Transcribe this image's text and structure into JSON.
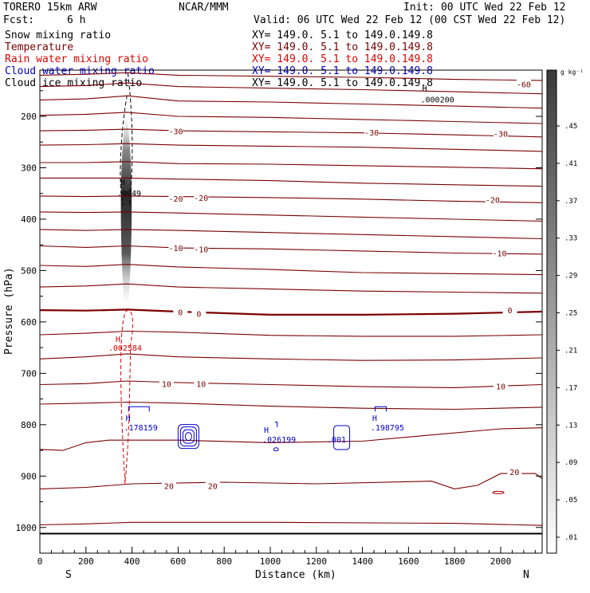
{
  "header": {
    "model": "TORERO  15km ARW",
    "org": "NCAR/MMM",
    "init": "Init: 00 UTC Wed 22 Feb 12",
    "fcst_label": "Fcst:",
    "fcst_value": "6 h",
    "valid": "Valid: 06 UTC Wed 22 Feb 12 (00 CST Wed 22 Feb 12)"
  },
  "legend": [
    {
      "name": "Snow mixing ratio",
      "color": "#000000",
      "xy": "XY= 149.0.  5.1 to 149.0.149.8"
    },
    {
      "name": "Temperature",
      "color": "#7a0000",
      "xy": "XY= 149.0.  5.1 to 149.0.149.8"
    },
    {
      "name": "Rain water mixing ratio",
      "color": "#e00000",
      "xy": "XY= 149.0.  5.1 to 149.0.149.8"
    },
    {
      "name": "Cloud water mixing ratio",
      "color": "#0000cc",
      "xy": "XY= 149.0.  5.1 to 149.0.149.8"
    },
    {
      "name": "Cloud ice mixing ratio",
      "color": "#000000",
      "xy": "XY= 149.0.  5.1 to 149.0.149.8"
    }
  ],
  "chart_data": {
    "type": "contour-cross-section",
    "xlabel": "Distance (km)",
    "ylabel": "Pressure (hPa)",
    "xlim": [
      0,
      2180
    ],
    "ylim": [
      1050,
      110
    ],
    "x_ticks": [
      0,
      200,
      400,
      600,
      800,
      1000,
      1200,
      1400,
      1600,
      1800,
      2000
    ],
    "y_ticks": [
      200,
      300,
      400,
      500,
      600,
      700,
      800,
      900,
      1000
    ],
    "x_end_labels": {
      "left": "S",
      "right": "N"
    },
    "colorbar": {
      "unit": "g kg⁻¹",
      "labels": [
        ".01",
        ".05",
        ".09",
        ".13",
        ".17",
        ".21",
        ".25",
        ".29",
        ".33",
        ".37",
        ".41",
        ".45"
      ],
      "color_low": "#ffffff",
      "color_high": "#3a3a3a"
    },
    "temperature_contours": [
      {
        "label": "-60",
        "points": [
          [
            0,
            120
          ],
          [
            200,
            118
          ],
          [
            380,
            115
          ],
          [
            600,
            120
          ],
          [
            1000,
            122
          ],
          [
            1400,
            124
          ],
          [
            1800,
            128
          ],
          [
            2180,
            130
          ]
        ]
      },
      {
        "label": "",
        "points": [
          [
            0,
            142
          ],
          [
            200,
            140
          ],
          [
            380,
            135
          ],
          [
            600,
            142
          ],
          [
            1000,
            145
          ],
          [
            1400,
            148
          ],
          [
            1800,
            152
          ],
          [
            2180,
            156
          ]
        ]
      },
      {
        "label": "",
        "points": [
          [
            0,
            168
          ],
          [
            200,
            166
          ],
          [
            380,
            160
          ],
          [
            600,
            170
          ],
          [
            1000,
            172
          ],
          [
            1400,
            176
          ],
          [
            1800,
            180
          ],
          [
            2180,
            184
          ]
        ]
      },
      {
        "label": "",
        "points": [
          [
            0,
            198
          ],
          [
            200,
            196
          ],
          [
            380,
            192
          ],
          [
            600,
            200
          ],
          [
            1000,
            202
          ],
          [
            1400,
            206
          ],
          [
            1800,
            210
          ],
          [
            2180,
            214
          ]
        ]
      },
      {
        "label": "-30",
        "points": [
          [
            0,
            228
          ],
          [
            200,
            227
          ],
          [
            380,
            225
          ],
          [
            600,
            228
          ],
          [
            1000,
            230
          ],
          [
            1400,
            232
          ],
          [
            1800,
            236
          ],
          [
            2180,
            240
          ]
        ]
      },
      {
        "label": "",
        "points": [
          [
            0,
            256
          ],
          [
            200,
            255
          ],
          [
            380,
            253
          ],
          [
            600,
            256
          ],
          [
            1000,
            258
          ],
          [
            1400,
            260
          ],
          [
            1800,
            264
          ],
          [
            2180,
            268
          ]
        ]
      },
      {
        "label": "-30",
        "points": [
          [
            0,
            290
          ],
          [
            200,
            290
          ],
          [
            380,
            288
          ],
          [
            600,
            292
          ],
          [
            1000,
            293
          ],
          [
            1400,
            296
          ],
          [
            1800,
            299
          ],
          [
            2180,
            302
          ]
        ]
      },
      {
        "label": "",
        "points": [
          [
            0,
            320
          ],
          [
            200,
            320
          ],
          [
            380,
            320
          ],
          [
            600,
            322
          ],
          [
            1000,
            325
          ],
          [
            1400,
            330
          ],
          [
            1800,
            333
          ],
          [
            2180,
            336
          ]
        ]
      },
      {
        "label": "-20",
        "points": [
          [
            0,
            355
          ],
          [
            200,
            356
          ],
          [
            380,
            355
          ],
          [
            600,
            356
          ],
          [
            1000,
            358
          ],
          [
            1400,
            361
          ],
          [
            1800,
            365
          ],
          [
            2180,
            368
          ]
        ]
      },
      {
        "label": "",
        "points": [
          [
            0,
            386
          ],
          [
            200,
            387
          ],
          [
            380,
            386
          ],
          [
            600,
            388
          ],
          [
            1000,
            392
          ],
          [
            1400,
            396
          ],
          [
            1800,
            400
          ],
          [
            2180,
            404
          ]
        ]
      },
      {
        "label": "",
        "points": [
          [
            0,
            420
          ],
          [
            200,
            422
          ],
          [
            380,
            420
          ],
          [
            600,
            422
          ],
          [
            1000,
            426
          ],
          [
            1400,
            430
          ],
          [
            1800,
            434
          ],
          [
            2180,
            438
          ]
        ]
      },
      {
        "label": "-10",
        "points": [
          [
            0,
            452
          ],
          [
            200,
            455
          ],
          [
            380,
            452
          ],
          [
            600,
            456
          ],
          [
            1000,
            458
          ],
          [
            1400,
            462
          ],
          [
            1800,
            466
          ],
          [
            2180,
            468
          ]
        ]
      },
      {
        "label": "",
        "points": [
          [
            0,
            490
          ],
          [
            200,
            492
          ],
          [
            380,
            488
          ],
          [
            600,
            493
          ],
          [
            1000,
            498
          ],
          [
            1400,
            504
          ],
          [
            1800,
            506
          ],
          [
            2180,
            508
          ]
        ]
      },
      {
        "label": "",
        "points": [
          [
            0,
            532
          ],
          [
            200,
            530
          ],
          [
            380,
            526
          ],
          [
            600,
            532
          ],
          [
            1000,
            536
          ],
          [
            1400,
            540
          ],
          [
            1800,
            542
          ],
          [
            2180,
            544
          ]
        ]
      },
      {
        "label": "0",
        "points": [
          [
            0,
            577
          ],
          [
            200,
            578
          ],
          [
            380,
            576
          ],
          [
            600,
            580
          ],
          [
            1000,
            586
          ],
          [
            1400,
            586
          ],
          [
            1800,
            584
          ],
          [
            2180,
            580
          ]
        ]
      },
      {
        "label": "",
        "points": [
          [
            0,
            625
          ],
          [
            200,
            622
          ],
          [
            380,
            618
          ],
          [
            600,
            620
          ],
          [
            1000,
            626
          ],
          [
            1400,
            628
          ],
          [
            1800,
            628
          ],
          [
            2180,
            625
          ]
        ]
      },
      {
        "label": "",
        "points": [
          [
            0,
            672
          ],
          [
            200,
            668
          ],
          [
            380,
            662
          ],
          [
            600,
            668
          ],
          [
            1000,
            672
          ],
          [
            1400,
            675
          ],
          [
            1800,
            674
          ],
          [
            2180,
            670
          ]
        ]
      },
      {
        "label": "10",
        "points": [
          [
            0,
            722
          ],
          [
            200,
            720
          ],
          [
            380,
            715
          ],
          [
            600,
            718
          ],
          [
            1000,
            722
          ],
          [
            1400,
            726
          ],
          [
            1800,
            728
          ],
          [
            2180,
            722
          ]
        ]
      },
      {
        "label": "",
        "points": [
          [
            0,
            760
          ],
          [
            200,
            758
          ],
          [
            380,
            756
          ],
          [
            600,
            758
          ],
          [
            1000,
            764
          ],
          [
            1400,
            768
          ],
          [
            1800,
            770
          ],
          [
            2180,
            766
          ]
        ]
      },
      {
        "label": "",
        "points": [
          [
            0,
            848
          ],
          [
            100,
            850
          ],
          [
            200,
            835
          ],
          [
            300,
            830
          ],
          [
            600,
            830
          ],
          [
            1000,
            835
          ],
          [
            1400,
            832
          ],
          [
            1700,
            820
          ],
          [
            2000,
            808
          ],
          [
            2180,
            806
          ]
        ]
      },
      {
        "label": "20",
        "points": [
          [
            0,
            925
          ],
          [
            200,
            922
          ],
          [
            400,
            915
          ],
          [
            800,
            912
          ],
          [
            1200,
            915
          ],
          [
            1700,
            910
          ],
          [
            1800,
            925
          ],
          [
            1900,
            918
          ],
          [
            2000,
            895
          ],
          [
            2150,
            895
          ],
          [
            2180,
            905
          ]
        ]
      },
      {
        "label": "",
        "points": [
          [
            0,
            995
          ],
          [
            200,
            993
          ],
          [
            400,
            990
          ],
          [
            1000,
            990
          ],
          [
            1800,
            992
          ],
          [
            2180,
            996
          ]
        ]
      }
    ],
    "temperature_labels": [
      {
        "text": "-60",
        "x": 2100,
        "p": 137
      },
      {
        "text": "-30",
        "x": 590,
        "p": 229
      },
      {
        "text": "-30",
        "x": 1440,
        "p": 231
      },
      {
        "text": "-30",
        "x": 2000,
        "p": 233
      },
      {
        "text": "-20",
        "x": 590,
        "p": 360
      },
      {
        "text": "-20",
        "x": 700,
        "p": 358
      },
      {
        "text": "-20",
        "x": 1965,
        "p": 362
      },
      {
        "text": "-10",
        "x": 590,
        "p": 456
      },
      {
        "text": "-10",
        "x": 700,
        "p": 458
      },
      {
        "text": "-10",
        "x": 1995,
        "p": 466
      },
      {
        "text": "0",
        "x": 610,
        "p": 581
      },
      {
        "text": "0",
        "x": 690,
        "p": 584
      },
      {
        "text": "0",
        "x": 2040,
        "p": 577
      },
      {
        "text": "10",
        "x": 550,
        "p": 720
      },
      {
        "text": "10",
        "x": 700,
        "p": 720
      },
      {
        "text": "10",
        "x": 2000,
        "p": 725
      },
      {
        "text": "20",
        "x": 560,
        "p": 919
      },
      {
        "text": "20",
        "x": 750,
        "p": 919
      },
      {
        "text": "20",
        "x": 2060,
        "p": 892
      }
    ],
    "rain_water": {
      "x_center": 380,
      "p_top": 580,
      "p_bottom": 915,
      "max_label": ".002584"
    },
    "cloud_water_maxima": [
      {
        "label": ".178159",
        "x": 400,
        "p": 805
      },
      {
        "label": ".026199",
        "x": 1000,
        "p": 828
      },
      {
        "label": ".001",
        "x": 1280,
        "p": 828
      },
      {
        "label": ".198795",
        "x": 1470,
        "p": 805
      }
    ],
    "snow_maxima": [
      {
        "label": ".0049",
        "x": 370,
        "p": 355
      }
    ],
    "ice_maxima": [
      {
        "label": ".000200",
        "x": 1680,
        "p": 185
      }
    ],
    "snow_shading": {
      "x_center": 375,
      "p_top": 190,
      "p_bottom": 560,
      "peak_value": 0.45
    }
  }
}
